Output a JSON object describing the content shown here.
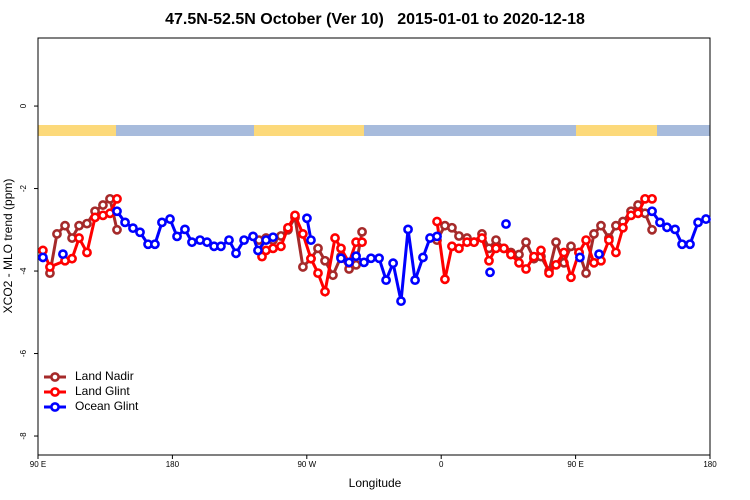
{
  "chart_data": {
    "type": "line",
    "title": "47.5N-52.5N October (Ver 10)   2015-01-01 to 2020-12-18",
    "xlabel": "Longitude",
    "ylabel": "XCO2 - MLO trend (ppm)",
    "xlim": [
      90,
      540
    ],
    "ylim": [
      -8.46,
      1.65
    ],
    "xticks": [
      {
        "value": 90,
        "label": "90 E"
      },
      {
        "value": 180,
        "label": "180"
      },
      {
        "value": 270,
        "label": "90 W"
      },
      {
        "value": 360,
        "label": "0"
      },
      {
        "value": 450,
        "label": "90 E"
      },
      {
        "value": 540,
        "label": "180"
      }
    ],
    "yticks": [
      0,
      -2,
      -4,
      -6,
      -8
    ],
    "legend": "lower left",
    "series": [
      {
        "name": "Land Nadir",
        "color": "#a52a2a",
        "x": [
          98.0,
          102.7,
          108.1,
          112.8,
          117.5,
          122.8,
          128.2,
          133.5,
          138.2,
          142.9,
          190,
          238.0,
          242.7,
          247.4,
          252.7,
          257.4,
          262.1,
          267.4,
          272.8,
          277.5,
          282.2,
          287.5,
          292.9,
          298.3,
          303.0,
          307.0,
          330,
          357.2,
          362.5,
          367.2,
          371.9,
          377.3,
          382.0,
          387.3,
          392.0,
          396.7,
          402.0,
          406.7,
          412.1,
          416.8,
          422.1,
          426.8,
          432.2,
          436.9,
          442.2,
          446.9,
          452.3,
          457.0,
          462.3,
          467.0,
          472.3,
          477.0,
          481.7,
          487.1,
          491.8,
          496.5,
          501.2
        ],
        "values": [
          -4.05,
          -3.1,
          -2.9,
          -3.2,
          -2.9,
          -2.85,
          -2.55,
          -2.4,
          -2.25,
          -3.0,
          null,
          -3.25,
          -3.2,
          -3.25,
          -3.15,
          -3.0,
          -2.7,
          -3.9,
          -3.7,
          -3.45,
          -3.75,
          -4.1,
          -3.65,
          -3.95,
          -3.85,
          -3.05,
          null,
          -3.25,
          -2.9,
          -2.95,
          -3.15,
          -3.2,
          -3.3,
          -3.1,
          -3.45,
          -3.25,
          -3.45,
          -3.55,
          -3.6,
          -3.3,
          -3.7,
          -3.65,
          -4.0,
          -3.3,
          -3.8,
          -3.4,
          -3.55,
          -4.05,
          -3.1,
          -2.9,
          -3.2,
          -2.9,
          -2.8,
          -2.55,
          -2.4,
          -2.6,
          -3.0
        ]
      },
      {
        "name": "Land Glint",
        "color": "#ff0000",
        "x": [
          93.3,
          98.0,
          108.1,
          112.8,
          117.5,
          122.8,
          128.2,
          133.5,
          138.2,
          142.9,
          190,
          240.0,
          242.7,
          247.4,
          252.7,
          257.4,
          262.1,
          267.4,
          272.8,
          277.5,
          282.2,
          288.9,
          292.9,
          298.3,
          303.0,
          307.0,
          330,
          357.2,
          362.5,
          367.2,
          371.9,
          377.3,
          382.0,
          387.3,
          392.0,
          396.7,
          402.0,
          406.7,
          412.1,
          416.8,
          422.1,
          426.8,
          432.2,
          436.9,
          442.2,
          446.9,
          452.3,
          457.0,
          462.3,
          467.0,
          472.3,
          477.0,
          481.7,
          487.1,
          491.8,
          496.5,
          501.2
        ],
        "values": [
          -3.5,
          -3.9,
          -3.75,
          -3.7,
          -3.2,
          -3.55,
          -2.7,
          -2.65,
          -2.6,
          -2.25,
          null,
          -3.65,
          -3.5,
          -3.45,
          -3.4,
          -2.95,
          -2.65,
          -3.1,
          -3.7,
          -4.05,
          -4.5,
          -3.2,
          -3.45,
          -3.8,
          -3.3,
          -3.3,
          null,
          -2.8,
          -4.2,
          -3.4,
          -3.45,
          -3.3,
          -3.3,
          -3.2,
          -3.75,
          -3.45,
          -3.45,
          -3.6,
          -3.8,
          -3.95,
          -3.65,
          -3.5,
          -4.05,
          -3.85,
          -3.55,
          -4.15,
          -3.55,
          -3.25,
          -3.8,
          -3.75,
          -3.25,
          -3.55,
          -2.95,
          -2.65,
          -2.6,
          -2.25,
          -2.25
        ]
      },
      {
        "name": "Ocean Glint",
        "color": "#0000ff",
        "x": [
          93.3,
          100,
          106.7,
          125,
          142.9,
          148.3,
          153.6,
          158.3,
          163.7,
          168.3,
          173.0,
          178.4,
          183.1,
          188.4,
          193.1,
          198.5,
          203.2,
          207.9,
          212.5,
          217.9,
          222.6,
          228.0,
          234.0,
          237.3,
          242.7,
          247.4,
          258,
          270.1,
          272.8,
          285,
          292.9,
          298.3,
          303.0,
          308.3,
          313.0,
          318.4,
          323.1,
          327.8,
          333.1,
          337.8,
          342.5,
          347.8,
          352.5,
          357.2,
          375,
          392.7,
          398,
          403.4,
          430,
          452.9,
          460,
          465.7,
          480,
          501.2,
          506.5,
          511.2,
          516.6,
          521.3,
          526.6,
          532.0,
          537.3
        ],
        "values": [
          -3.67,
          null,
          -3.59,
          null,
          -2.55,
          -2.82,
          -2.96,
          -3.06,
          -3.35,
          -3.35,
          -2.82,
          -2.74,
          -3.16,
          -2.99,
          -3.3,
          -3.25,
          -3.3,
          -3.4,
          -3.4,
          -3.25,
          -3.57,
          -3.25,
          -3.16,
          -3.5,
          -3.25,
          -3.18,
          null,
          -2.72,
          -3.25,
          null,
          -3.69,
          -3.79,
          -3.64,
          -3.79,
          -3.69,
          -3.69,
          -4.22,
          -3.81,
          -4.73,
          -2.99,
          -4.22,
          -3.67,
          -3.2,
          -3.16,
          null,
          -4.03,
          null,
          -2.86,
          null,
          -3.67,
          null,
          -3.59,
          null,
          -2.55,
          -2.82,
          -2.94,
          -2.99,
          -3.35,
          -3.35,
          -2.82,
          -2.74
        ]
      }
    ]
  }
}
